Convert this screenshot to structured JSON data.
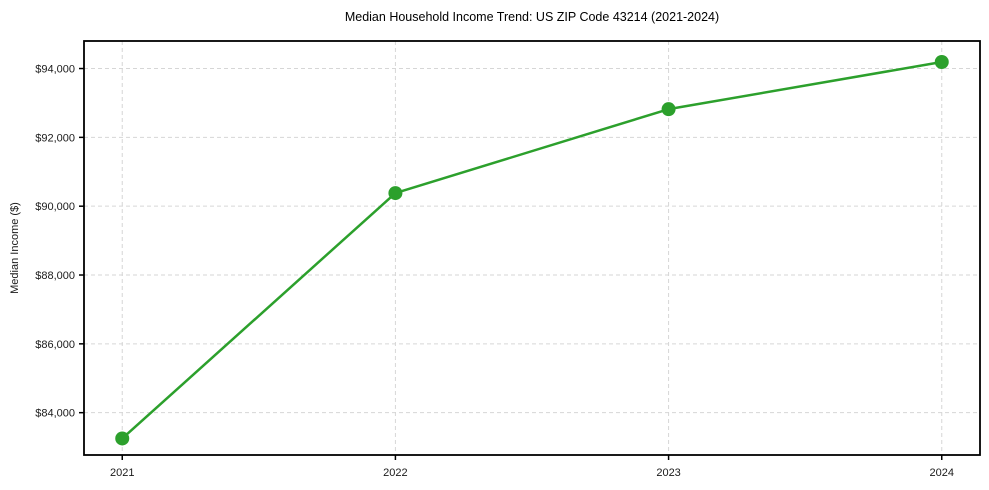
{
  "figure": {
    "background": "#ffffff"
  },
  "chart_data": {
    "type": "line",
    "title": "Median Household Income Trend: US ZIP Code 43214 (2021-2024)",
    "xlabel": "",
    "ylabel": "Median Income ($)",
    "x": [
      2021,
      2022,
      2023,
      2024
    ],
    "x_tick_labels": [
      "2021",
      "2022",
      "2023",
      "2024"
    ],
    "series": [
      {
        "name": "Median household income",
        "values": [
          83250,
          90380,
          92820,
          94190
        ]
      }
    ],
    "y_ticks": [
      84000,
      86000,
      88000,
      90000,
      92000,
      94000
    ],
    "y_tick_labels": [
      "$84,000",
      "$86,000",
      "$88,000",
      "$90,000",
      "$92,000",
      "$94,000"
    ],
    "xlim": [
      2020.86,
      2024.14
    ],
    "ylim": [
      82770,
      94800
    ],
    "grid": true,
    "grid_style": "dashed",
    "legend_position": "none",
    "line_color": "#2ca02c",
    "marker": "circle",
    "grid_color": "#d6d6d6",
    "axis_color": "#000000",
    "text_color": "#1a1a1a"
  }
}
